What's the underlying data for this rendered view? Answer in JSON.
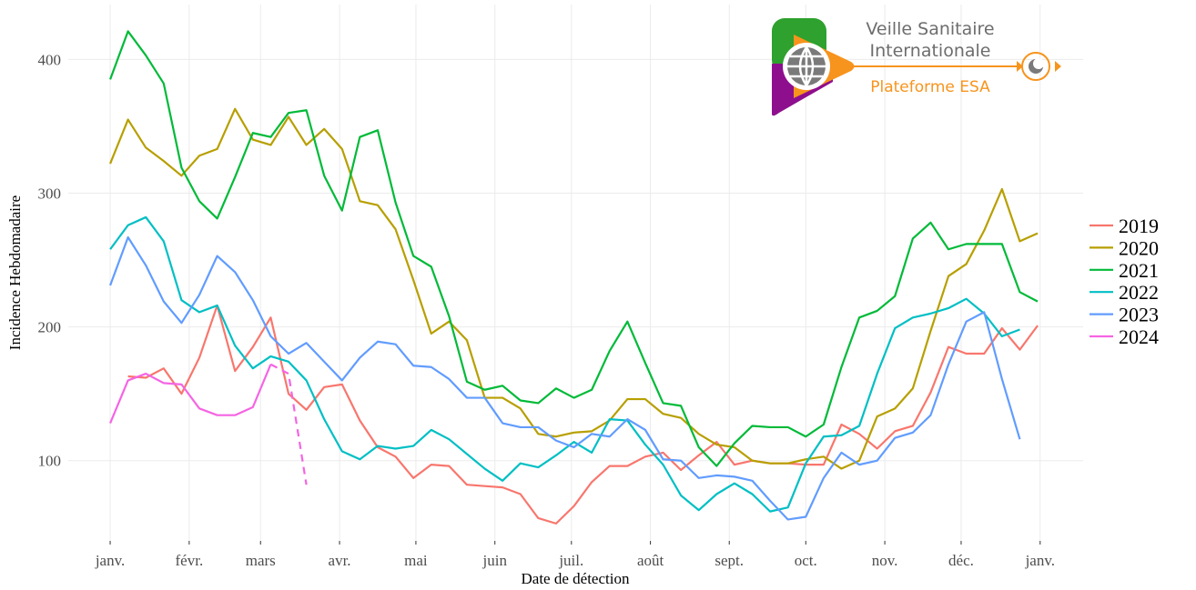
{
  "logo": {
    "line1": "Veille Sanitaire",
    "line2": "Internationale",
    "tagline": "Plateforme ESA"
  },
  "chart_data": {
    "type": "line",
    "x_label": "Date de détection",
    "y_label": "Incidence Hebdomadaire",
    "x": [
      0,
      1,
      2,
      3,
      4,
      5,
      6,
      7,
      8,
      9,
      10,
      11,
      12,
      13,
      14,
      15,
      16,
      17,
      18,
      19,
      20,
      21,
      22,
      23,
      24,
      25,
      26,
      27,
      28,
      29,
      30,
      31,
      32,
      33,
      34,
      35,
      36,
      37,
      38,
      39,
      40,
      41,
      42,
      43,
      44,
      45,
      46,
      47,
      48,
      49,
      50,
      51,
      52
    ],
    "xlim": [
      -2.35,
      54.55
    ],
    "xticks": [
      {
        "value": 0,
        "label": "janv."
      },
      {
        "value": 4.43,
        "label": "févr."
      },
      {
        "value": 8.43,
        "label": "mars"
      },
      {
        "value": 12.86,
        "label": "avr."
      },
      {
        "value": 17.14,
        "label": "mai"
      },
      {
        "value": 21.57,
        "label": "juin"
      },
      {
        "value": 25.86,
        "label": "juil."
      },
      {
        "value": 30.29,
        "label": "août"
      },
      {
        "value": 34.71,
        "label": "sept."
      },
      {
        "value": 39,
        "label": "oct."
      },
      {
        "value": 43.43,
        "label": "nov."
      },
      {
        "value": 47.71,
        "label": "déc."
      },
      {
        "value": 52.14,
        "label": "janv."
      }
    ],
    "ylim": [
      40,
      441
    ],
    "yticks": [
      100,
      200,
      300,
      400
    ],
    "grid": true,
    "legend": "right",
    "series": [
      {
        "name": "2019",
        "color": "#F8766D",
        "values": [
          null,
          163,
          162,
          169,
          150,
          177,
          216,
          167,
          185,
          207,
          150,
          138,
          155,
          157,
          130,
          110,
          103,
          87,
          97,
          96,
          82,
          81,
          80,
          75,
          57,
          53,
          66,
          84,
          96,
          96,
          103,
          106,
          93,
          104,
          114,
          97,
          100,
          98,
          98,
          97,
          97,
          127,
          120,
          109,
          122,
          126,
          151,
          185,
          180,
          180,
          199,
          183,
          201
        ]
      },
      {
        "name": "2020",
        "color": "#B79F00",
        "values": [
          322,
          355,
          334,
          324,
          313,
          328,
          333,
          363,
          340,
          336,
          357,
          336,
          348,
          333,
          294,
          291,
          273,
          235,
          195,
          204,
          190,
          147,
          147,
          139,
          120,
          118,
          121,
          122,
          130,
          146,
          146,
          135,
          132,
          120,
          112,
          110,
          100,
          98,
          98,
          101,
          103,
          94,
          100,
          133,
          139,
          154,
          197,
          238,
          247,
          272,
          303,
          264,
          270
        ]
      },
      {
        "name": "2021",
        "color": "#00BA38",
        "values": [
          385,
          421,
          403,
          382,
          319,
          294,
          281,
          312,
          345,
          342,
          360,
          362,
          313,
          287,
          342,
          347,
          293,
          253,
          245,
          208,
          159,
          153,
          156,
          145,
          143,
          154,
          147,
          153,
          182,
          204,
          173,
          143,
          141,
          110,
          96,
          113,
          126,
          125,
          125,
          118,
          127,
          170,
          207,
          212,
          223,
          266,
          278,
          258,
          262,
          262,
          262,
          226,
          219
        ]
      },
      {
        "name": "2022",
        "color": "#00BFC4",
        "values": [
          258,
          276,
          282,
          264,
          220,
          211,
          216,
          186,
          169,
          178,
          174,
          160,
          131,
          107,
          101,
          111,
          109,
          111,
          123,
          116,
          105,
          94,
          85,
          98,
          95,
          104,
          114,
          106,
          131,
          130,
          112,
          97,
          74,
          63,
          75,
          83,
          75,
          62,
          65,
          98,
          118,
          119,
          126,
          165,
          199,
          207,
          210,
          214,
          221,
          210,
          193,
          198,
          null
        ]
      },
      {
        "name": "2023",
        "color": "#619CFF",
        "values": [
          231,
          267,
          246,
          219,
          203,
          224,
          253,
          241,
          220,
          193,
          180,
          188,
          174,
          160,
          177,
          189,
          187,
          171,
          170,
          161,
          147,
          147,
          128,
          125,
          125,
          115,
          110,
          120,
          118,
          131,
          123,
          101,
          100,
          87,
          89,
          88,
          85,
          70,
          56,
          58,
          87,
          106,
          97,
          100,
          117,
          121,
          134,
          172,
          204,
          211,
          161,
          116,
          null
        ]
      },
      {
        "name": "2024",
        "color": "#F564E3",
        "dash_from": 9,
        "values": [
          128,
          160,
          165,
          158,
          157,
          139,
          134,
          134,
          140,
          172,
          165,
          82,
          null,
          null,
          null,
          null,
          null,
          null,
          null,
          null,
          null,
          null,
          null,
          null,
          null,
          null,
          null,
          null,
          null,
          null,
          null,
          null,
          null,
          null,
          null,
          null,
          null,
          null,
          null,
          null,
          null,
          null,
          null,
          null,
          null,
          null,
          null,
          null,
          null,
          null,
          null,
          null,
          null
        ]
      }
    ]
  }
}
